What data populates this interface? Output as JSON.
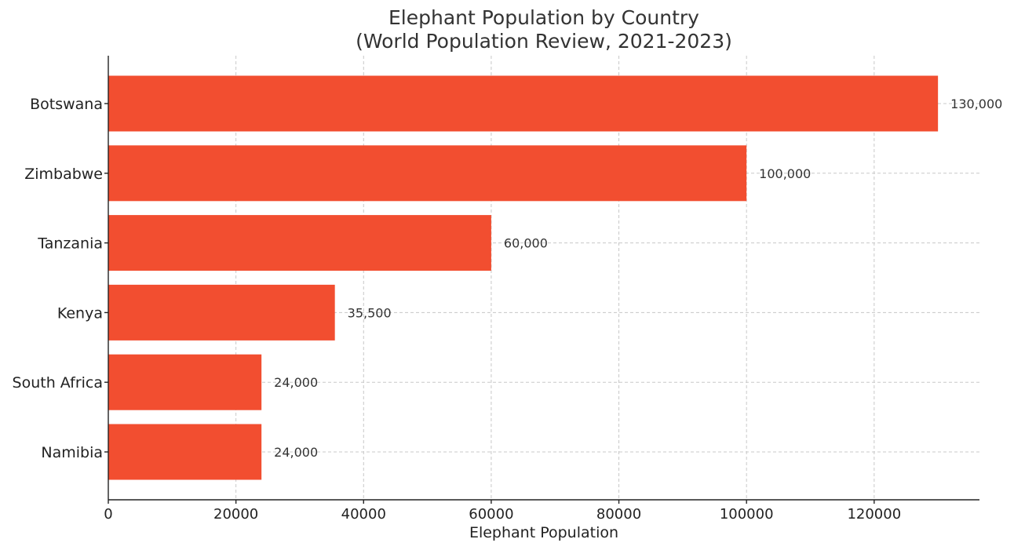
{
  "chart_data": {
    "type": "bar",
    "orientation": "horizontal",
    "title": "Elephant Population by Country",
    "subtitle": "(World Population Review, 2021-2023)",
    "xlabel": "Elephant Population",
    "ylabel": "",
    "categories": [
      "Botswana",
      "Zimbabwe",
      "Tanzania",
      "Kenya",
      "South Africa",
      "Namibia"
    ],
    "values": [
      130000,
      100000,
      60000,
      35500,
      24000,
      24000
    ],
    "data_labels": [
      "130,000",
      "100,000",
      "60,000",
      "35,500",
      "24,000",
      "24,000"
    ],
    "xlim": [
      0,
      136500
    ],
    "xticks": [
      0,
      20000,
      40000,
      60000,
      80000,
      100000,
      120000
    ],
    "xtick_labels": [
      "0",
      "20000",
      "40000",
      "60000",
      "80000",
      "100000",
      "120000"
    ],
    "grid": true,
    "bar_color": "#f24e30"
  }
}
